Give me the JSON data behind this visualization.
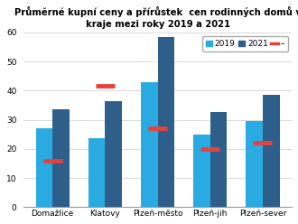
{
  "title_line1": "Průměrné kupní ceny a přírůstek  cen rodinných domů v",
  "title_line2": "kraje mezi roky 2019 a 2021",
  "categories": [
    "Domažlice",
    "Klatovy",
    "Plzeň-město",
    "Plzeň-jih",
    "Plzeň-sever"
  ],
  "values_2019": [
    27,
    23.5,
    43,
    25,
    29.5
  ],
  "values_2021": [
    33.5,
    36.5,
    58.5,
    32.5,
    38.5
  ],
  "values_red": [
    16,
    41.5,
    27,
    20,
    22
  ],
  "color_2019": "#29ABE2",
  "color_2021": "#2E5F8A",
  "color_red": "#E8413A",
  "ylim": [
    0,
    60
  ],
  "yticks": [
    0,
    10,
    20,
    30,
    40,
    50,
    60
  ],
  "legend_labels": [
    "2019",
    "2021"
  ],
  "bar_width": 0.32,
  "red_line_lw": 3.5,
  "red_line_half": 0.18,
  "title_fontsize": 7.2,
  "tick_fontsize": 6.5,
  "legend_fontsize": 6.5,
  "background_color": "#FFFFFF"
}
